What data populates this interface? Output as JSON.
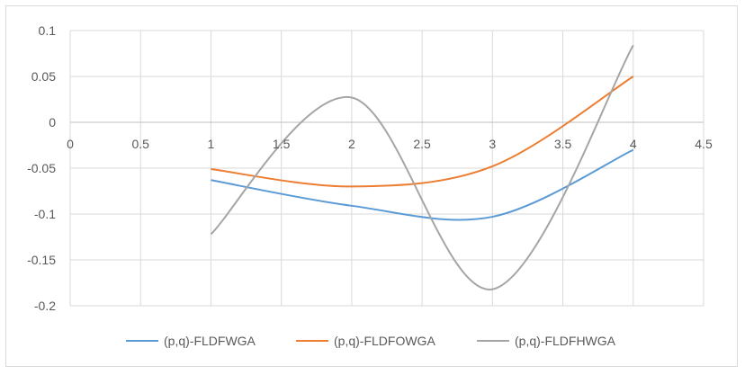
{
  "chart_data": {
    "type": "line",
    "title": "",
    "xlabel": "",
    "ylabel": "",
    "xlim": [
      0,
      4.5
    ],
    "ylim": [
      -0.2,
      0.1
    ],
    "x_ticks": [
      0,
      0.5,
      1,
      1.5,
      2,
      2.5,
      3,
      3.5,
      4,
      4.5
    ],
    "x_tick_labels": [
      "0",
      "0.5",
      "1",
      "1.5",
      "2",
      "2.5",
      "3",
      "3.5",
      "4",
      "4.5"
    ],
    "y_ticks": [
      0.1,
      0.05,
      0,
      -0.05,
      -0.1,
      -0.15,
      -0.2
    ],
    "y_tick_labels": [
      "0.1",
      "0.05",
      "0",
      "-0.05",
      "-0.1",
      "-0.15",
      "-0.2"
    ],
    "grid": true,
    "legend_position": "bottom",
    "x": [
      1,
      2,
      3,
      4
    ],
    "series": [
      {
        "name": "(p,q)-FLDFWGA",
        "color": "#5b9bd5",
        "values": [
          -0.063,
          -0.091,
          -0.103,
          -0.03
        ]
      },
      {
        "name": "(p,q)-FLDFOWGA",
        "color": "#ed7d31",
        "values": [
          -0.051,
          -0.07,
          -0.048,
          0.05
        ]
      },
      {
        "name": "(p,q)-FLDFHWGA",
        "color": "#a5a5a5",
        "values": [
          -0.122,
          0.027,
          -0.182,
          0.084
        ]
      }
    ]
  }
}
